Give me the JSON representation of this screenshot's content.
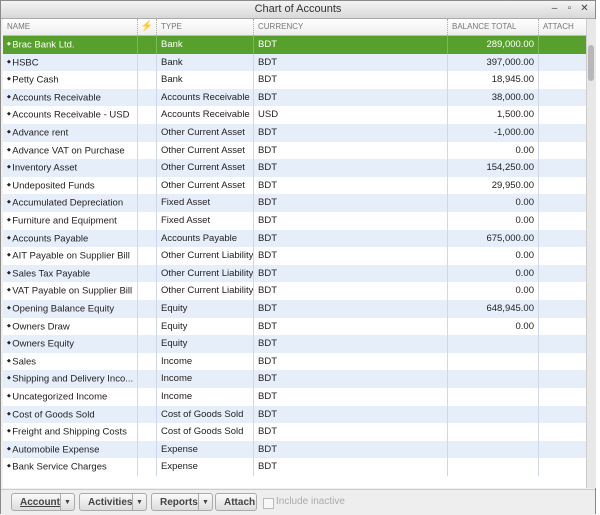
{
  "window": {
    "title": "Chart of Accounts"
  },
  "table": {
    "columns": [
      "NAME",
      "TYPE",
      "CURRENCY",
      "BALANCE TOTAL",
      "ATTACH"
    ],
    "rows": [
      [
        "Brac Bank Ltd.",
        "Bank",
        "BDT",
        "289,000.00"
      ],
      [
        "HSBC",
        "Bank",
        "BDT",
        "397,000.00"
      ],
      [
        "Petty Cash",
        "Bank",
        "BDT",
        "18,945.00"
      ],
      [
        "Accounts Receivable",
        "Accounts Receivable",
        "BDT",
        "38,000.00"
      ],
      [
        "Accounts Receivable - USD",
        "Accounts Receivable",
        "USD",
        "1,500.00"
      ],
      [
        "Advance rent",
        "Other Current Asset",
        "BDT",
        "-1,000.00"
      ],
      [
        "Advance VAT on Purchase",
        "Other Current Asset",
        "BDT",
        "0.00"
      ],
      [
        "Inventory Asset",
        "Other Current Asset",
        "BDT",
        "154,250.00"
      ],
      [
        "Undeposited Funds",
        "Other Current Asset",
        "BDT",
        "29,950.00"
      ],
      [
        "Accumulated Depreciation",
        "Fixed Asset",
        "BDT",
        "0.00"
      ],
      [
        "Furniture and Equipment",
        "Fixed Asset",
        "BDT",
        "0.00"
      ],
      [
        "Accounts Payable",
        "Accounts Payable",
        "BDT",
        "675,000.00"
      ],
      [
        "AIT Payable on Supplier Bill",
        "Other Current Liability",
        "BDT",
        "0.00"
      ],
      [
        "Sales Tax Payable",
        "Other Current Liability",
        "BDT",
        "0.00"
      ],
      [
        "VAT Payable on Supplier Bill",
        "Other Current Liability",
        "BDT",
        "0.00"
      ],
      [
        "Opening Balance Equity",
        "Equity",
        "BDT",
        "648,945.00"
      ],
      [
        "Owners Draw",
        "Equity",
        "BDT",
        "0.00"
      ],
      [
        "Owners Equity",
        "Equity",
        "BDT",
        null
      ],
      [
        "Sales",
        "Income",
        "BDT",
        null
      ],
      [
        "Shipping and Delivery Inco...",
        "Income",
        "BDT",
        null
      ],
      [
        "Uncategorized Income",
        "Income",
        "BDT",
        null
      ],
      [
        "Cost of Goods Sold",
        "Cost of Goods Sold",
        "BDT",
        null
      ],
      [
        "Freight and Shipping Costs",
        "Cost of Goods Sold",
        "BDT",
        null
      ],
      [
        "Automobile Expense",
        "Expense",
        "BDT",
        null
      ],
      [
        "Bank Service Charges",
        "Expense",
        "BDT",
        null
      ]
    ]
  },
  "footer": {
    "buttons": [
      "Account",
      "Activities",
      "Reports",
      "Attach"
    ],
    "checkbox": "Include inactive"
  }
}
